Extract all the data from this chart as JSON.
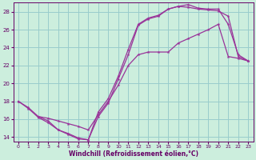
{
  "xlabel": "Windchill (Refroidissement éolien,°C)",
  "bg_color": "#cceedd",
  "line_color": "#993399",
  "grid_color": "#99cccc",
  "xlim": [
    -0.5,
    23.5
  ],
  "ylim": [
    13.5,
    29.0
  ],
  "xticks": [
    0,
    1,
    2,
    3,
    4,
    5,
    6,
    7,
    8,
    9,
    10,
    11,
    12,
    13,
    14,
    15,
    16,
    17,
    18,
    19,
    20,
    21,
    22,
    23
  ],
  "yticks": [
    14,
    16,
    18,
    20,
    22,
    24,
    26,
    28
  ],
  "line1_x": [
    0,
    1,
    2,
    3,
    4,
    5,
    6,
    7,
    8,
    9,
    10,
    11,
    12,
    13,
    14,
    15,
    16,
    17,
    18,
    19,
    20,
    21,
    22,
    23
  ],
  "line1_y": [
    18,
    17.3,
    16.3,
    16.1,
    15.8,
    15.5,
    15.2,
    14.8,
    16.5,
    18.0,
    19.8,
    22.0,
    23.2,
    23.5,
    23.5,
    23.5,
    24.5,
    25.0,
    25.5,
    26.0,
    26.6,
    23.0,
    22.8,
    22.5
  ],
  "line2_x": [
    0,
    1,
    2,
    3,
    4,
    5,
    6,
    7,
    8,
    9,
    10,
    11,
    12,
    13,
    14,
    15,
    16,
    17,
    18,
    19,
    20,
    21,
    22,
    23
  ],
  "line2_y": [
    18,
    17.2,
    16.2,
    15.6,
    14.8,
    14.4,
    13.9,
    13.7,
    16.3,
    17.8,
    20.5,
    23.2,
    26.5,
    27.2,
    27.5,
    28.3,
    28.6,
    28.5,
    28.3,
    28.2,
    28.1,
    27.5,
    23.0,
    22.5
  ],
  "line3_x": [
    2,
    3,
    4,
    5,
    6,
    7,
    8,
    9,
    10,
    11,
    12,
    13,
    14,
    15,
    16,
    17,
    18,
    19,
    20,
    21,
    22,
    23
  ],
  "line3_y": [
    16.3,
    15.8,
    14.8,
    14.3,
    13.8,
    13.7,
    16.8,
    18.3,
    20.8,
    23.8,
    26.6,
    27.3,
    27.6,
    28.3,
    28.6,
    28.8,
    28.4,
    28.3,
    28.3,
    26.6,
    23.2,
    22.5
  ]
}
